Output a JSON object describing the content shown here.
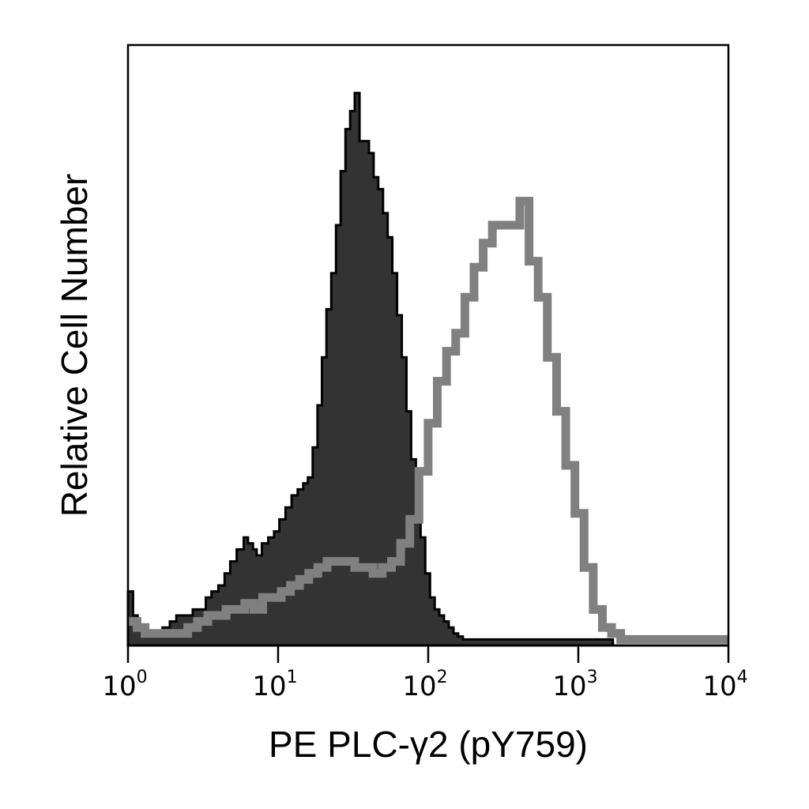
{
  "chart_data": {
    "type": "histogram",
    "xlabel": "PE PLC-γ2 (pY759)",
    "ylabel": "Relative Cell Number",
    "x_scale": "log",
    "xlim": [
      1,
      10000
    ],
    "ylim": [
      0,
      100
    ],
    "x_ticks": [
      {
        "value": 1,
        "base": "10",
        "exponent": "0"
      },
      {
        "value": 10,
        "base": "10",
        "exponent": "1"
      },
      {
        "value": 100,
        "base": "10",
        "exponent": "2"
      },
      {
        "value": 1000,
        "base": "10",
        "exponent": "3"
      },
      {
        "value": 10000,
        "base": "10",
        "exponent": "4"
      }
    ],
    "grid": false,
    "series": [
      {
        "style": "filled",
        "fill_color": "#333333",
        "stroke_color": "#000000",
        "x": [
          1.0,
          1.08,
          1.16,
          1.26,
          1.5,
          1.7,
          1.9,
          2.1,
          2.4,
          2.7,
          3.0,
          3.3,
          3.6,
          4.0,
          4.4,
          4.8,
          5.3,
          5.9,
          6.3,
          6.8,
          7.2,
          7.8,
          8.6,
          9.4,
          10.2,
          11.2,
          12.3,
          13.5,
          14.7,
          15.8,
          17.0,
          18.3,
          19.6,
          21.0,
          22.6,
          24.3,
          26.1,
          28.1,
          30.2,
          32.4,
          34.9,
          37.5,
          40.3,
          43.3,
          46.5,
          50.0,
          53.7,
          57.7,
          62.0,
          66.7,
          71.7,
          77.0,
          82.8,
          89.0,
          95.6,
          102.8,
          110.4,
          118.7,
          127.5,
          137.0,
          147.3,
          158.3,
          170.1,
          200.0,
          300.0,
          500.0,
          800.0,
          1000.0,
          1300.0,
          1700.0
        ],
        "y": [
          9,
          5,
          3,
          2,
          2,
          3,
          4,
          5,
          5,
          6,
          6,
          8,
          9,
          10,
          12,
          14,
          16,
          18,
          17,
          16,
          15,
          17,
          18,
          19,
          21,
          23,
          25,
          26,
          27,
          28,
          33,
          40,
          48,
          56,
          62,
          70,
          79,
          86,
          89,
          92,
          84,
          84,
          82,
          78,
          76,
          72,
          68,
          62,
          55,
          48,
          39,
          31,
          24,
          18,
          12,
          8,
          6,
          5,
          4,
          3,
          2,
          1.5,
          1,
          1,
          1,
          1,
          1,
          1,
          1,
          0
        ]
      },
      {
        "style": "outline",
        "stroke_color": "#808080",
        "x": [
          1.0,
          1.15,
          1.3,
          1.5,
          1.8,
          2.1,
          2.5,
          2.9,
          3.4,
          3.9,
          4.5,
          5.2,
          6.0,
          6.9,
          7.9,
          9.1,
          10.5,
          12.1,
          13.9,
          16.0,
          18.4,
          21.2,
          24.4,
          28.1,
          32.4,
          37.3,
          42.9,
          49.4,
          56.9,
          65.5,
          75.4,
          86.8,
          99.9,
          115.0,
          132.4,
          152.4,
          175.4,
          201.9,
          232.4,
          267.5,
          307.9,
          354.4,
          408.0,
          469.6,
          540.5,
          622.2,
          716.2,
          824.4,
          949.0,
          1092.4,
          1257.4,
          1447.4,
          1666.1,
          1917.8,
          3000.0,
          6000.0,
          10000.0
        ],
        "y": [
          4,
          3,
          2,
          2,
          2,
          2,
          3,
          4,
          5,
          5,
          6,
          6,
          7,
          6,
          8,
          8,
          9,
          10,
          11,
          12,
          13,
          14,
          14,
          14,
          13,
          13,
          12,
          13,
          14,
          17,
          21,
          29,
          37,
          44,
          49,
          52,
          58,
          63,
          67,
          70,
          70,
          70,
          74,
          64,
          58,
          48,
          39,
          30,
          22,
          13,
          6,
          3,
          2,
          1,
          1,
          1,
          1
        ]
      }
    ]
  }
}
